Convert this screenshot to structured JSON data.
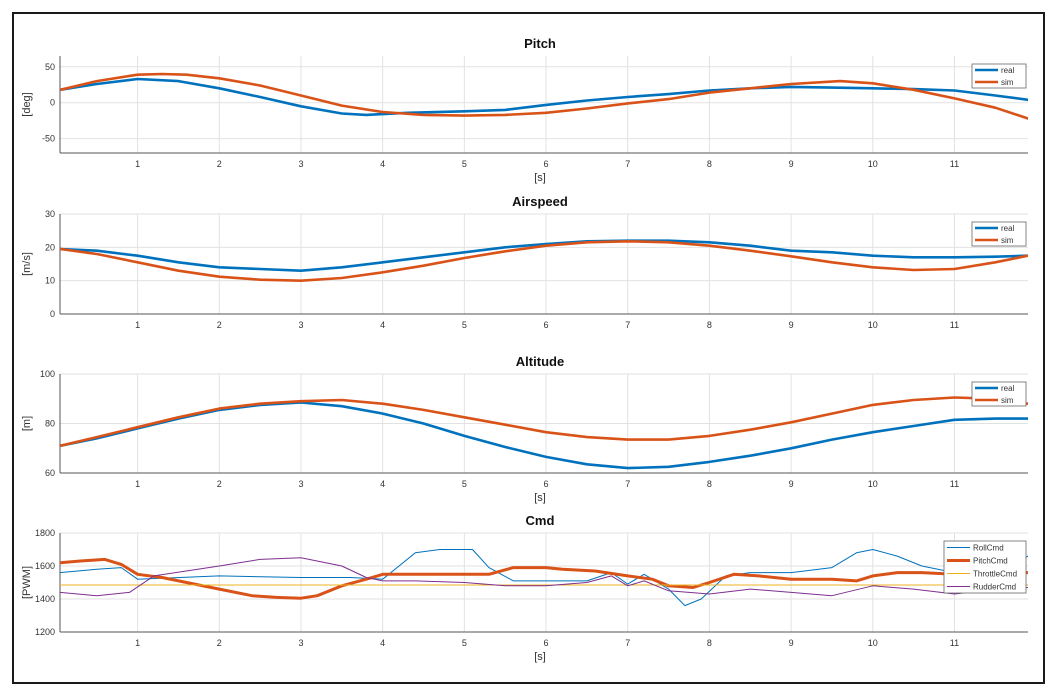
{
  "colors": {
    "real": "#0072BD",
    "sim": "#D95319",
    "roll": "#0072BD",
    "pitch": "#D95319",
    "throttle": "#EDB120",
    "rudder": "#7E2F8E",
    "grid": "#e2e2e2"
  },
  "chart_data": [
    {
      "type": "line",
      "title": "Pitch",
      "xlabel": "[s]",
      "ylabel": "[deg]",
      "xlim": [
        0.05,
        11.9
      ],
      "ylim": [
        -70,
        65
      ],
      "xticks": [
        1,
        2,
        3,
        4,
        5,
        6,
        7,
        8,
        9,
        10,
        11
      ],
      "yticks": [
        50,
        0,
        -50
      ],
      "grid": true,
      "legend_position": "top-right",
      "series": [
        {
          "name": "real",
          "color_key": "real",
          "width": 2.6,
          "x": [
            0.05,
            0.5,
            1.0,
            1.5,
            2.0,
            2.5,
            3.0,
            3.5,
            3.8,
            4.3,
            5.0,
            5.5,
            6.0,
            6.5,
            7.0,
            7.5,
            8.0,
            8.5,
            9.0,
            9.5,
            10.0,
            10.5,
            11.0,
            11.5,
            11.9
          ],
          "y": [
            18,
            26,
            33,
            30,
            20,
            8,
            -5,
            -15,
            -17,
            -14,
            -12,
            -10,
            -3,
            3,
            8,
            12,
            17,
            20,
            22,
            21,
            20,
            19,
            17,
            10,
            4
          ]
        },
        {
          "name": "sim",
          "color_key": "sim",
          "width": 2.6,
          "x": [
            0.05,
            0.5,
            1.0,
            1.3,
            1.6,
            2.0,
            2.5,
            3.0,
            3.5,
            4.0,
            4.5,
            5.0,
            5.5,
            6.0,
            6.5,
            7.0,
            7.5,
            8.0,
            8.5,
            9.0,
            9.6,
            10.0,
            10.5,
            11.0,
            11.5,
            11.9
          ],
          "y": [
            18,
            30,
            39,
            40,
            39,
            34,
            24,
            10,
            -4,
            -13,
            -17,
            -18,
            -17,
            -14,
            -8,
            -1,
            5,
            14,
            20,
            26,
            30,
            27,
            18,
            6,
            -7,
            -22
          ]
        }
      ]
    },
    {
      "type": "line",
      "title": "Airspeed",
      "xlabel": "",
      "ylabel": "[m/s]",
      "xlim": [
        0.05,
        11.9
      ],
      "ylim": [
        0,
        30
      ],
      "xticks": [
        1,
        2,
        3,
        4,
        5,
        6,
        7,
        8,
        9,
        10,
        11
      ],
      "yticks": [
        30,
        20,
        10,
        0
      ],
      "grid": true,
      "legend_position": "top-right",
      "series": [
        {
          "name": "real",
          "color_key": "real",
          "width": 2.6,
          "x": [
            0.05,
            0.5,
            1.0,
            1.5,
            2.0,
            2.5,
            3.0,
            3.5,
            4.0,
            4.5,
            5.0,
            5.5,
            6.0,
            6.5,
            7.0,
            7.5,
            8.0,
            8.5,
            9.0,
            9.5,
            10.0,
            10.5,
            11.0,
            11.5,
            11.9
          ],
          "y": [
            19.5,
            19,
            17.5,
            15.5,
            14,
            13.5,
            13,
            14,
            15.5,
            17,
            18.5,
            20,
            21,
            21.8,
            22,
            22,
            21.5,
            20.5,
            19,
            18.5,
            17.5,
            17,
            17,
            17.2,
            17.5
          ]
        },
        {
          "name": "sim",
          "color_key": "sim",
          "width": 2.6,
          "x": [
            0.05,
            0.5,
            1.0,
            1.5,
            2.0,
            2.5,
            3.0,
            3.5,
            4.0,
            4.5,
            5.0,
            5.5,
            6.0,
            6.5,
            7.0,
            7.5,
            8.0,
            8.5,
            9.0,
            9.5,
            10.0,
            10.5,
            11.0,
            11.5,
            11.9
          ],
          "y": [
            19.5,
            18,
            15.5,
            13,
            11.2,
            10.3,
            10,
            10.8,
            12.5,
            14.5,
            16.8,
            18.8,
            20.5,
            21.5,
            21.8,
            21.5,
            20.5,
            19,
            17.3,
            15.5,
            14,
            13.2,
            13.5,
            15.5,
            17.5
          ]
        }
      ]
    },
    {
      "type": "line",
      "title": "Altitude",
      "xlabel": "[s]",
      "ylabel": "[m]",
      "xlim": [
        0.05,
        11.9
      ],
      "ylim": [
        60,
        100
      ],
      "xticks": [
        1,
        2,
        3,
        4,
        5,
        6,
        7,
        8,
        9,
        10,
        11
      ],
      "yticks": [
        100,
        80,
        60
      ],
      "grid": true,
      "legend_position": "top-right",
      "series": [
        {
          "name": "real",
          "color_key": "real",
          "width": 2.6,
          "x": [
            0.05,
            0.5,
            1.0,
            1.5,
            2.0,
            2.5,
            3.0,
            3.5,
            4.0,
            4.5,
            5.0,
            5.5,
            6.0,
            6.5,
            7.0,
            7.5,
            8.0,
            8.5,
            9.0,
            9.5,
            10.0,
            10.5,
            11.0,
            11.5,
            11.9
          ],
          "y": [
            71,
            74,
            78,
            82,
            85.5,
            87.5,
            88.5,
            87,
            84,
            80,
            75,
            70.5,
            66.5,
            63.5,
            62,
            62.5,
            64.5,
            67,
            70,
            73.5,
            76.5,
            79,
            81.5,
            82,
            82
          ]
        },
        {
          "name": "sim",
          "color_key": "sim",
          "width": 2.6,
          "x": [
            0.05,
            0.5,
            1.0,
            1.5,
            2.0,
            2.5,
            3.0,
            3.5,
            4.0,
            4.5,
            5.0,
            5.5,
            6.0,
            6.5,
            7.0,
            7.5,
            8.0,
            8.5,
            9.0,
            9.5,
            10.0,
            10.5,
            11.0,
            11.5,
            11.9
          ],
          "y": [
            71,
            74.5,
            78.5,
            82.5,
            86,
            88,
            89,
            89.5,
            88,
            85.5,
            82.5,
            79.5,
            76.5,
            74.5,
            73.5,
            73.5,
            75,
            77.5,
            80.5,
            84,
            87.5,
            89.5,
            90.5,
            90,
            88
          ]
        }
      ]
    },
    {
      "type": "line",
      "title": "Cmd",
      "xlabel": "[s]",
      "ylabel": "[PWM]",
      "xlim": [
        0.05,
        11.9
      ],
      "ylim": [
        1200,
        1800
      ],
      "xticks": [
        1,
        2,
        3,
        4,
        5,
        6,
        7,
        8,
        9,
        10,
        11
      ],
      "yticks": [
        1800,
        1600,
        1400,
        1200
      ],
      "grid": true,
      "legend_position": "top-right",
      "series": [
        {
          "name": "RollCmd",
          "color_key": "roll",
          "width": 1,
          "x": [
            0.05,
            0.5,
            0.8,
            1.0,
            2.0,
            3.0,
            3.6,
            4.0,
            4.2,
            4.4,
            4.7,
            5.1,
            5.3,
            5.6,
            6.0,
            6.5,
            6.8,
            7.0,
            7.2,
            7.5,
            7.7,
            7.9,
            8.2,
            8.5,
            9.0,
            9.5,
            9.8,
            10.0,
            10.3,
            10.6,
            11.0,
            11.5,
            11.9
          ],
          "y": [
            1560,
            1580,
            1590,
            1520,
            1540,
            1530,
            1530,
            1520,
            1600,
            1680,
            1700,
            1700,
            1590,
            1510,
            1510,
            1510,
            1560,
            1490,
            1550,
            1460,
            1360,
            1400,
            1540,
            1560,
            1560,
            1590,
            1680,
            1700,
            1660,
            1600,
            1560,
            1540,
            1660
          ]
        },
        {
          "name": "PitchCmd",
          "color_key": "pitch",
          "width": 3,
          "x": [
            0.05,
            0.3,
            0.6,
            0.8,
            1.0,
            1.3,
            1.6,
            2.0,
            2.4,
            2.7,
            3.0,
            3.2,
            3.5,
            3.8,
            4.0,
            4.4,
            5.0,
            5.3,
            5.6,
            6.0,
            6.2,
            6.6,
            7.0,
            7.3,
            7.5,
            7.8,
            8.0,
            8.3,
            8.6,
            9.0,
            9.5,
            9.8,
            10.0,
            10.3,
            10.6,
            11.0,
            11.5,
            11.9
          ],
          "y": [
            1620,
            1630,
            1640,
            1610,
            1550,
            1530,
            1500,
            1460,
            1420,
            1410,
            1405,
            1420,
            1480,
            1520,
            1550,
            1550,
            1550,
            1550,
            1590,
            1590,
            1580,
            1570,
            1540,
            1520,
            1480,
            1470,
            1500,
            1550,
            1540,
            1520,
            1520,
            1510,
            1540,
            1560,
            1560,
            1550,
            1560,
            1560
          ]
        },
        {
          "name": "ThrottleCmd",
          "color_key": "throttle",
          "width": 1,
          "x": [
            0.05,
            11.9
          ],
          "y": [
            1485,
            1485
          ]
        },
        {
          "name": "RudderCmd",
          "color_key": "rudder",
          "width": 1,
          "x": [
            0.05,
            0.5,
            0.9,
            1.2,
            2.0,
            2.5,
            3.0,
            3.5,
            3.8,
            4.0,
            4.4,
            5.0,
            5.5,
            6.0,
            6.5,
            6.8,
            7.0,
            7.2,
            7.5,
            8.0,
            8.5,
            9.0,
            9.5,
            10.0,
            10.5,
            11.0,
            11.5,
            11.9
          ],
          "y": [
            1440,
            1420,
            1440,
            1540,
            1600,
            1640,
            1650,
            1600,
            1530,
            1510,
            1510,
            1500,
            1480,
            1480,
            1500,
            1540,
            1480,
            1510,
            1450,
            1430,
            1460,
            1440,
            1420,
            1480,
            1460,
            1430,
            1460,
            1470
          ]
        }
      ]
    }
  ]
}
